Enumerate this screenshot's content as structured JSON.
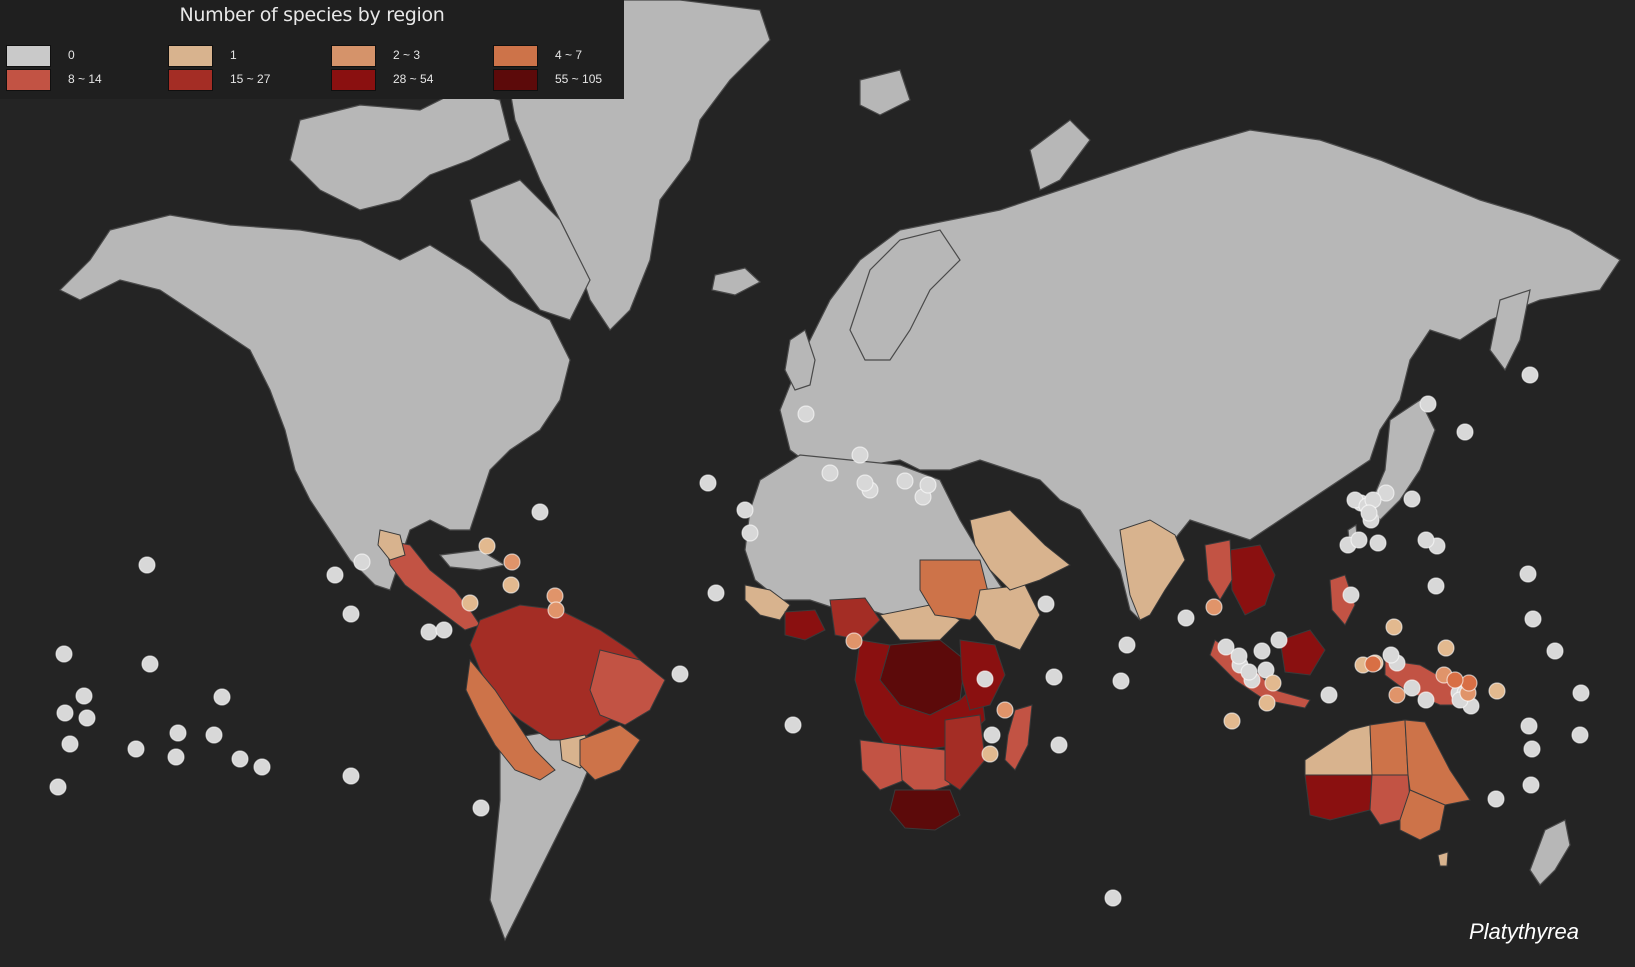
{
  "legend": {
    "title": "Number of species by region",
    "items": [
      {
        "label": "0",
        "color": "#c9c9c9"
      },
      {
        "label": "1",
        "color": "#d8b38e"
      },
      {
        "label": "2 ~ 3",
        "color": "#d5936a"
      },
      {
        "label": "4 ~ 7",
        "color": "#cd7349"
      },
      {
        "label": "8 ~ 14",
        "color": "#c25344"
      },
      {
        "label": "15 ~ 27",
        "color": "#a42d25"
      },
      {
        "label": "28 ~ 54",
        "color": "#8a1010"
      },
      {
        "label": "55 ~ 105",
        "color": "#5c0a0a"
      }
    ]
  },
  "genus": "Platythyrea",
  "colors": {
    "ocean": "#242424",
    "land_zero": "#b7b7b7",
    "dot_zero": "#d8d8d8",
    "dot_one": "#e2b98f",
    "dot_two_three": "#e0946a",
    "dot_four_seven": "#d86f45"
  }
}
